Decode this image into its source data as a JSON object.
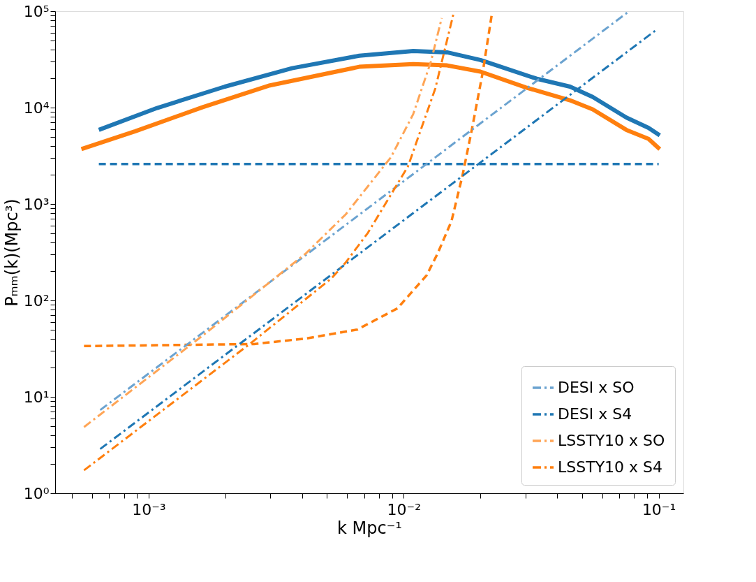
{
  "chart_data": {
    "type": "line",
    "xlabel": "k Mpc⁻¹",
    "ylabel": "Pₘₘ(k)(Mpc³)",
    "log": "xy",
    "grid": false,
    "legend": "bottom right",
    "marker": "none",
    "xlim": [
      0.00043,
      0.125
    ],
    "ylim": [
      1,
      100000
    ],
    "xticks": [
      {
        "value": 0.0005,
        "label": null
      },
      {
        "value": 0.0006,
        "label": null
      },
      {
        "value": 0.0007,
        "label": null
      },
      {
        "value": 0.0008,
        "label": null
      },
      {
        "value": 0.0009,
        "label": null
      },
      {
        "value": 0.001,
        "label": "10⁻³"
      },
      {
        "value": 0.002,
        "label": null
      },
      {
        "value": 0.003,
        "label": null
      },
      {
        "value": 0.004,
        "label": null
      },
      {
        "value": 0.005,
        "label": null
      },
      {
        "value": 0.006,
        "label": null
      },
      {
        "value": 0.007,
        "label": null
      },
      {
        "value": 0.008,
        "label": null
      },
      {
        "value": 0.009,
        "label": null
      },
      {
        "value": 0.01,
        "label": "10⁻²"
      },
      {
        "value": 0.02,
        "label": null
      },
      {
        "value": 0.03,
        "label": null
      },
      {
        "value": 0.04,
        "label": null
      },
      {
        "value": 0.05,
        "label": null
      },
      {
        "value": 0.06,
        "label": null
      },
      {
        "value": 0.07,
        "label": null
      },
      {
        "value": 0.08,
        "label": null
      },
      {
        "value": 0.09,
        "label": null
      },
      {
        "value": 0.1,
        "label": "10⁻¹"
      }
    ],
    "yticks": [
      {
        "value": 1,
        "label": "10⁰"
      },
      {
        "value": 2,
        "label": null
      },
      {
        "value": 3,
        "label": null
      },
      {
        "value": 4,
        "label": null
      },
      {
        "value": 5,
        "label": null
      },
      {
        "value": 6,
        "label": null
      },
      {
        "value": 7,
        "label": null
      },
      {
        "value": 8,
        "label": null
      },
      {
        "value": 9,
        "label": null
      },
      {
        "value": 10,
        "label": "10¹"
      },
      {
        "value": 20,
        "label": null
      },
      {
        "value": 30,
        "label": null
      },
      {
        "value": 40,
        "label": null
      },
      {
        "value": 50,
        "label": null
      },
      {
        "value": 60,
        "label": null
      },
      {
        "value": 70,
        "label": null
      },
      {
        "value": 80,
        "label": null
      },
      {
        "value": 90,
        "label": null
      },
      {
        "value": 100,
        "label": "10²"
      },
      {
        "value": 200,
        "label": null
      },
      {
        "value": 300,
        "label": null
      },
      {
        "value": 400,
        "label": null
      },
      {
        "value": 500,
        "label": null
      },
      {
        "value": 600,
        "label": null
      },
      {
        "value": 700,
        "label": null
      },
      {
        "value": 800,
        "label": null
      },
      {
        "value": 900,
        "label": null
      },
      {
        "value": 1000,
        "label": "10³"
      },
      {
        "value": 2000,
        "label": null
      },
      {
        "value": 3000,
        "label": null
      },
      {
        "value": 4000,
        "label": null
      },
      {
        "value": 5000,
        "label": null
      },
      {
        "value": 6000,
        "label": null
      },
      {
        "value": 7000,
        "label": null
      },
      {
        "value": 8000,
        "label": null
      },
      {
        "value": 9000,
        "label": null
      },
      {
        "value": 10000,
        "label": "10⁴"
      },
      {
        "value": 20000,
        "label": null
      },
      {
        "value": 30000,
        "label": null
      },
      {
        "value": 40000,
        "label": null
      },
      {
        "value": 50000,
        "label": null
      },
      {
        "value": 60000,
        "label": null
      },
      {
        "value": 70000,
        "label": null
      },
      {
        "value": 80000,
        "label": null
      },
      {
        "value": 90000,
        "label": null
      },
      {
        "value": 100000,
        "label": "10⁵"
      }
    ],
    "series": [
      {
        "line_style": "solid",
        "color": "#1f77b4",
        "x": [
          0.000638,
          0.00108,
          0.00199,
          0.00365,
          0.0067,
          0.0109,
          0.0148,
          0.02,
          0.0331,
          0.0449,
          0.0551,
          0.0747,
          0.0912,
          0.101
        ],
        "values": [
          5870,
          9910,
          16500,
          25600,
          34500,
          38600,
          37400,
          31200,
          20000,
          16500,
          12900,
          7890,
          6170,
          5150
        ]
      },
      {
        "line_style": "solid",
        "color": "#ff7f0e",
        "x": [
          0.000545,
          0.000886,
          0.00163,
          0.00299,
          0.0067,
          0.0109,
          0.0148,
          0.02,
          0.0301,
          0.0449,
          0.0551,
          0.0747,
          0.0912,
          0.101
        ],
        "values": [
          3710,
          5680,
          10100,
          17000,
          26500,
          28300,
          27400,
          23600,
          16200,
          11900,
          9600,
          5870,
          4740,
          3710
        ]
      },
      {
        "line_style": "dashed",
        "color": "#1f77b4",
        "x": [
          0.000638,
          0.1
        ],
        "values": [
          2600,
          2600
        ]
      },
      {
        "line_style": "dashed",
        "color": "#ff7f0e",
        "x": [
          0.000558,
          0.00259,
          0.00414,
          0.00658,
          0.00946,
          0.0123,
          0.0136,
          0.0154,
          0.017,
          0.0185,
          0.0204,
          0.0222
        ],
        "values": [
          33.6,
          35.3,
          40.3,
          49.9,
          82.8,
          182,
          308,
          664,
          1960,
          5870,
          22900,
          95200
        ]
      },
      {
        "line_style": "dashdot",
        "name": "DESI x SO",
        "color": "#6ba3d0",
        "x": [
          0.000646,
          0.076
        ],
        "values": [
          7.3,
          98400
        ]
      },
      {
        "line_style": "dashdot",
        "name": "DESI x S4",
        "color": "#1f77b4",
        "x": [
          0.000646,
          0.0989
        ],
        "values": [
          2.88,
          65300
        ]
      },
      {
        "line_style": "dashdot",
        "name": "LSSTY10 x SO",
        "color": "#ffa556",
        "x": [
          0.000558,
          0.00164,
          0.00414,
          0.00593,
          0.00891,
          0.0109,
          0.0128,
          0.0141
        ],
        "values": [
          4.86,
          43.8,
          308,
          782,
          3050,
          8550,
          30200,
          84900
        ]
      },
      {
        "line_style": "dashdot",
        "name": "LSSTY10 x S4",
        "color": "#ff7f0e",
        "x": [
          0.000558,
          0.00249,
          0.00522,
          0.00593,
          0.00724,
          0.0104,
          0.0133,
          0.0157
        ],
        "values": [
          1.73,
          35.3,
          170,
          248,
          502,
          2460,
          15700,
          95200
        ]
      }
    ]
  }
}
